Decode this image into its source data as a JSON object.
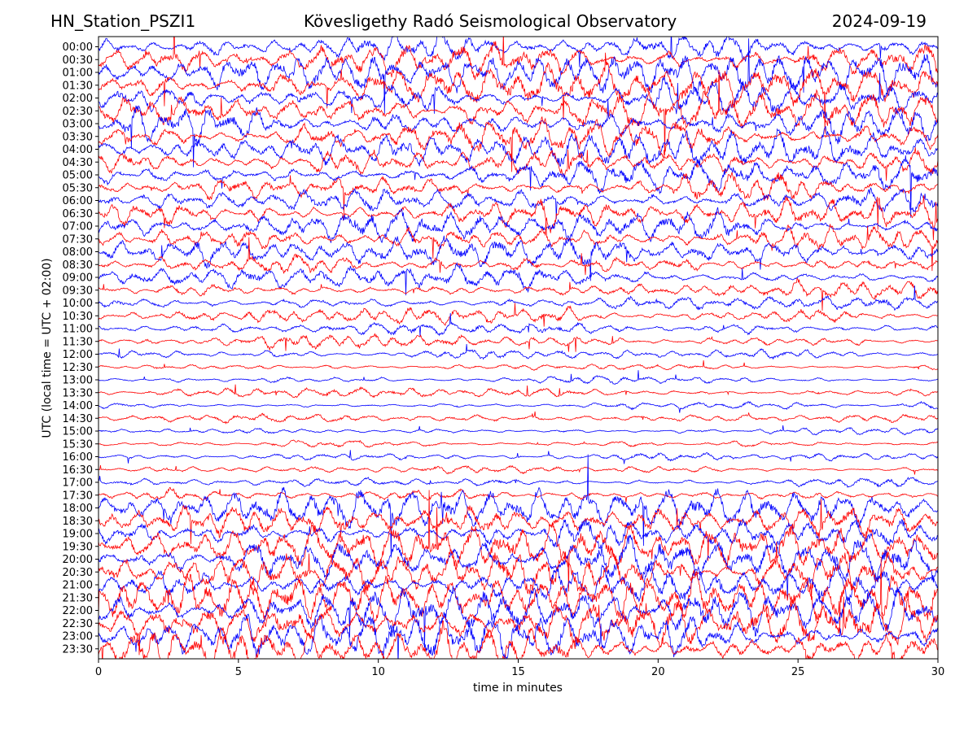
{
  "header": {
    "station": "HN_Station_PSZI1",
    "observatory": "Kövesligethy Radó Seismological Observatory",
    "date": "2024-09-19"
  },
  "chart_data": {
    "type": "line",
    "title": "Kövesligethy Radó Seismological Observatory",
    "xlabel": "time in minutes",
    "ylabel": "UTC (local time = UTC + 02:00)",
    "xlim": [
      0,
      30
    ],
    "xticks": [
      "0",
      "5",
      "10",
      "15",
      "20",
      "25",
      "30"
    ],
    "yticks": [
      "00:00",
      "00:30",
      "01:00",
      "01:30",
      "02:00",
      "02:30",
      "03:00",
      "03:30",
      "04:00",
      "04:30",
      "05:00",
      "05:30",
      "06:00",
      "06:30",
      "07:00",
      "07:30",
      "08:00",
      "08:30",
      "09:00",
      "09:30",
      "10:00",
      "10:30",
      "11:00",
      "11:30",
      "12:00",
      "12:30",
      "13:00",
      "13:30",
      "14:00",
      "14:30",
      "15:00",
      "15:30",
      "16:00",
      "16:30",
      "17:00",
      "17:30",
      "18:00",
      "18:30",
      "19:00",
      "19:30",
      "20:00",
      "20:30",
      "21:00",
      "21:30",
      "22:00",
      "22:30",
      "23:00",
      "23:30"
    ],
    "trace_colors": [
      "#0000ff",
      "#ff0000"
    ],
    "grid": false,
    "legend": "none",
    "trace_amplitude_by_halfhour": [
      5,
      5,
      5,
      5,
      5,
      5,
      5,
      4.8,
      4.8,
      4.8,
      4.8,
      4.6,
      4.6,
      4.5,
      4.4,
      4.2,
      4,
      3.6,
      3.2,
      2.8,
      2.6,
      2.4,
      2.2,
      2,
      1.4,
      1.2,
      1.2,
      1.3,
      1.3,
      1.2,
      1.2,
      1.1,
      1.1,
      1.2,
      1.5,
      2.4,
      5,
      5.2,
      5.4,
      5.6,
      5.8,
      6,
      6,
      6,
      6,
      6,
      6,
      6
    ]
  }
}
